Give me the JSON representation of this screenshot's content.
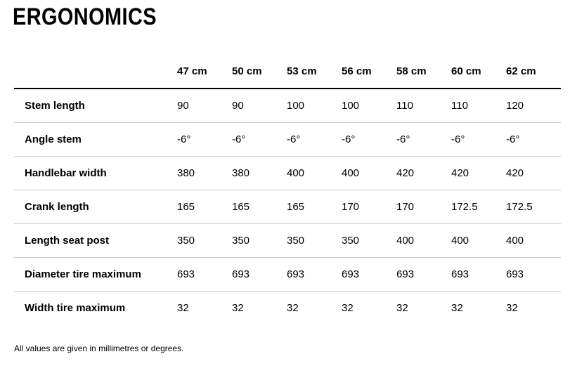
{
  "page": {
    "title": "ERGONOMICS",
    "footnote": "All values are given in millimetres or degrees."
  },
  "table": {
    "columns": [
      "47 cm",
      "50 cm",
      "53 cm",
      "56 cm",
      "58 cm",
      "60 cm",
      "62 cm"
    ],
    "rows": [
      {
        "label": "Stem length",
        "values": [
          "90",
          "90",
          "100",
          "100",
          "110",
          "110",
          "120"
        ]
      },
      {
        "label": "Angle stem",
        "values": [
          "-6°",
          "-6°",
          "-6°",
          "-6°",
          "-6°",
          "-6°",
          "-6°"
        ]
      },
      {
        "label": "Handlebar width",
        "values": [
          "380",
          "380",
          "400",
          "400",
          "420",
          "420",
          "420"
        ]
      },
      {
        "label": "Crank length",
        "values": [
          "165",
          "165",
          "165",
          "170",
          "170",
          "172.5",
          "172.5"
        ]
      },
      {
        "label": "Length seat post",
        "values": [
          "350",
          "350",
          "350",
          "350",
          "400",
          "400",
          "400"
        ]
      },
      {
        "label": "Diameter tire maximum",
        "values": [
          "693",
          "693",
          "693",
          "693",
          "693",
          "693",
          "693"
        ]
      },
      {
        "label": "Width tire maximum",
        "values": [
          "32",
          "32",
          "32",
          "32",
          "32",
          "32",
          "32"
        ]
      }
    ]
  },
  "colors": {
    "text": "#000000",
    "header_rule": "#000000",
    "row_separator": "#cccccc",
    "background": "#ffffff"
  },
  "chart_data": {
    "type": "table",
    "title": "ERGONOMICS",
    "columns": [
      "47 cm",
      "50 cm",
      "53 cm",
      "56 cm",
      "58 cm",
      "60 cm",
      "62 cm"
    ],
    "row_labels": [
      "Stem length",
      "Angle stem",
      "Handlebar width",
      "Crank length",
      "Length seat post",
      "Diameter tire maximum",
      "Width tire maximum"
    ],
    "rows": [
      [
        "90",
        "90",
        "100",
        "100",
        "110",
        "110",
        "120"
      ],
      [
        "-6°",
        "-6°",
        "-6°",
        "-6°",
        "-6°",
        "-6°",
        "-6°"
      ],
      [
        "380",
        "380",
        "400",
        "400",
        "420",
        "420",
        "420"
      ],
      [
        "165",
        "165",
        "165",
        "170",
        "170",
        "172.5",
        "172.5"
      ],
      [
        "350",
        "350",
        "350",
        "350",
        "400",
        "400",
        "400"
      ],
      [
        "693",
        "693",
        "693",
        "693",
        "693",
        "693",
        "693"
      ],
      [
        "32",
        "32",
        "32",
        "32",
        "32",
        "32",
        "32"
      ]
    ],
    "footnote": "All values are given in millimetres or degrees.",
    "units": "millimetres or degrees"
  }
}
